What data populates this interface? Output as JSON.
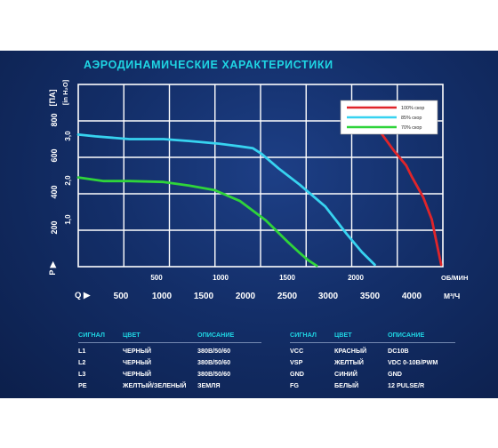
{
  "title": "АЭРОДИНАМИЧЕСКИЕ ХАРАКТЕРИСТИКИ",
  "chart_data": {
    "type": "line",
    "y_label_pa": "[ПА]",
    "y_label_inh2o": "[in H₂O]",
    "y_axis_letter": "P ▶",
    "x_axis_letter": "Q ▶",
    "x_unit_rpm": "ОБ/МИН",
    "x_unit_flow": "М³/Ч",
    "y_ticks_pa": [
      "200",
      "400",
      "600",
      "800"
    ],
    "y_ticks_inh2o": [
      "1,0",
      "2,0",
      "3,0"
    ],
    "x_ticks_top": [
      "500",
      "1000",
      "1500",
      "2000"
    ],
    "x_ticks_bottom": [
      "500",
      "1000",
      "1500",
      "2000",
      "2500",
      "3000",
      "3500",
      "4000"
    ],
    "xlim": [
      0,
      4280
    ],
    "ylim": [
      0,
      1000
    ],
    "legend_position": "top-right",
    "series": [
      {
        "name": "100% скор",
        "color": "#e0252a",
        "x": [
          3430,
          3560,
          3700,
          3850,
          3920,
          4050,
          4150,
          4260
        ],
        "y": [
          790,
          730,
          640,
          555,
          490,
          380,
          260,
          10
        ]
      },
      {
        "name": "85% скор",
        "color": "#37d3f0",
        "x": [
          0,
          200,
          600,
          1000,
          1300,
          1650,
          1900,
          2050,
          2150,
          2250,
          2350,
          2600,
          2900,
          3150,
          3330,
          3480
        ],
        "y": [
          725,
          715,
          700,
          700,
          690,
          675,
          660,
          650,
          620,
          580,
          540,
          450,
          330,
          180,
          80,
          10
        ]
      },
      {
        "name": "70% скор",
        "color": "#2fd43a",
        "x": [
          0,
          300,
          600,
          1000,
          1300,
          1600,
          1900,
          2200,
          2450,
          2600,
          2700,
          2800
        ],
        "y": [
          490,
          470,
          470,
          465,
          445,
          420,
          360,
          255,
          140,
          75,
          35,
          5
        ]
      }
    ]
  },
  "signal_table_left": {
    "headers": [
      "СИГНАЛ",
      "ЦВЕТ",
      "ОПИСАНИЕ"
    ],
    "rows": [
      [
        "L1",
        "ЧЕРНЫЙ",
        "380В/50/60"
      ],
      [
        "L2",
        "ЧЕРНЫЙ",
        "380В/50/60"
      ],
      [
        "L3",
        "ЧЕРНЫЙ",
        "380В/50/60"
      ],
      [
        "PE",
        "ЖЕЛТЫЙ/ЗЕЛЕНЫЙ",
        "ЗЕМЛЯ"
      ]
    ]
  },
  "signal_table_right": {
    "headers": [
      "СИГНАЛ",
      "ЦВЕТ",
      "ОПИСАНИЕ"
    ],
    "rows": [
      [
        "VCC",
        "КРАСНЫЙ",
        "DC10В"
      ],
      [
        "VSP",
        "ЖЕЛТЫЙ",
        "VDC 0-10В/PWM"
      ],
      [
        "GND",
        "СИНИЙ",
        "GND"
      ],
      [
        "FG",
        "БЕЛЫЙ",
        "12 PULSE/R"
      ]
    ]
  }
}
